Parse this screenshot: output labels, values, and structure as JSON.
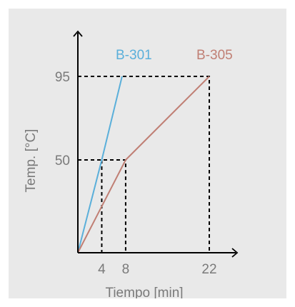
{
  "chart_data": {
    "type": "line",
    "xlabel": "Tiempo [min]",
    "ylabel": "Temp. [°C]",
    "xticks": [
      {
        "label": "4",
        "value": 4
      },
      {
        "label": "8",
        "value": 8
      },
      {
        "label": "22",
        "value": 22
      }
    ],
    "yticks": [
      {
        "label": "50",
        "value": 50
      },
      {
        "label": "95",
        "value": 95
      }
    ],
    "grid": false,
    "series": [
      {
        "name": "B-301",
        "color": "#5aafda",
        "points": [
          [
            0,
            0
          ],
          [
            4,
            50
          ],
          [
            7.4,
            95
          ]
        ]
      },
      {
        "name": "B-305",
        "color": "#c07f74",
        "points": [
          [
            0,
            0
          ],
          [
            8,
            50
          ],
          [
            22,
            95
          ]
        ]
      }
    ],
    "guides": [
      {
        "points": [
          [
            0,
            95
          ],
          [
            22,
            95
          ],
          [
            22,
            0
          ]
        ]
      },
      {
        "points": [
          [
            0,
            50
          ],
          [
            8,
            50
          ],
          [
            8,
            0
          ]
        ]
      },
      {
        "points": [
          [
            4,
            50
          ],
          [
            4,
            0
          ]
        ]
      }
    ]
  }
}
